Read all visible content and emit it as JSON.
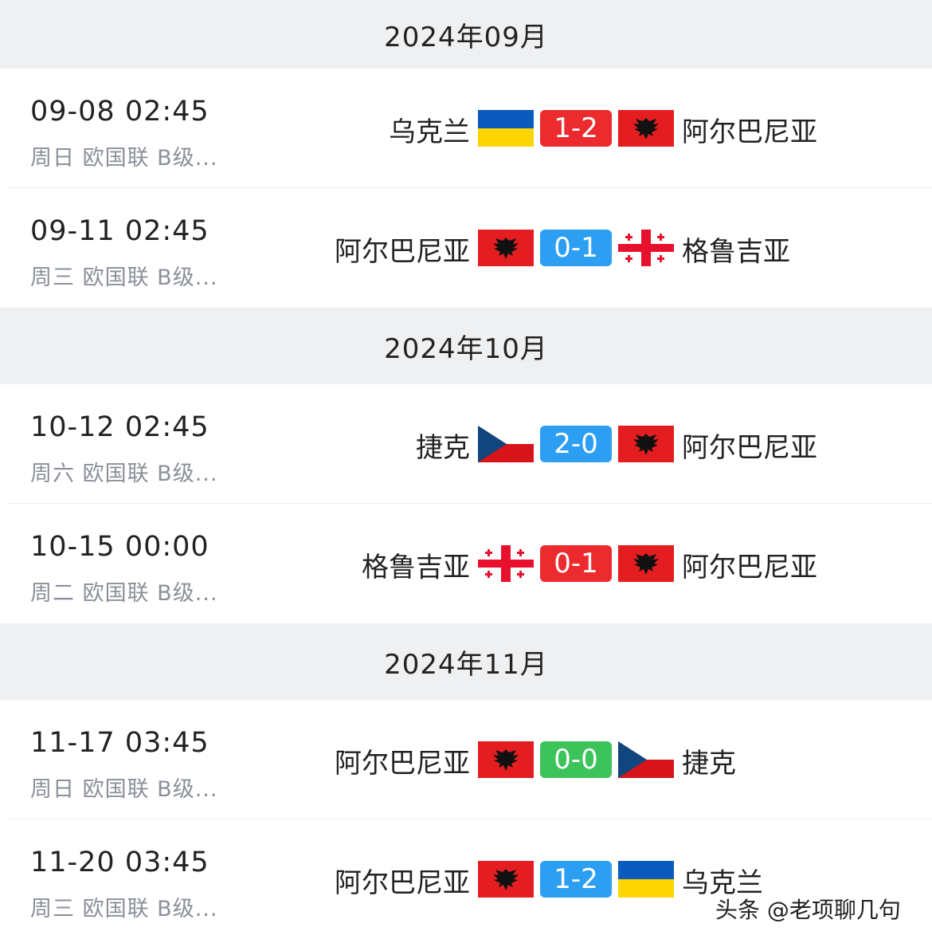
{
  "colors": {
    "loss": "#ec2b2e",
    "draw": "#3cc35a",
    "win_other": "#2d9ff3"
  },
  "sections": [
    {
      "month": "2024年09月",
      "matches": [
        {
          "date": "09-08 02:45",
          "info": "周日 欧国联 B级...",
          "home": "乌克兰",
          "home_flag": "ukraine",
          "score": "1-2",
          "score_color": "#ec2b2e",
          "away": "阿尔巴尼亚",
          "away_flag": "albania"
        },
        {
          "date": "09-11 02:45",
          "info": "周三 欧国联 B级...",
          "home": "阿尔巴尼亚",
          "home_flag": "albania",
          "score": "0-1",
          "score_color": "#2d9ff3",
          "away": "格鲁吉亚",
          "away_flag": "georgia"
        }
      ]
    },
    {
      "month": "2024年10月",
      "matches": [
        {
          "date": "10-12 02:45",
          "info": "周六 欧国联 B级...",
          "home": "捷克",
          "home_flag": "czech",
          "score": "2-0",
          "score_color": "#2d9ff3",
          "away": "阿尔巴尼亚",
          "away_flag": "albania"
        },
        {
          "date": "10-15 00:00",
          "info": "周二 欧国联 B级...",
          "home": "格鲁吉亚",
          "home_flag": "georgia",
          "score": "0-1",
          "score_color": "#ec2b2e",
          "away": "阿尔巴尼亚",
          "away_flag": "albania"
        }
      ]
    },
    {
      "month": "2024年11月",
      "matches": [
        {
          "date": "11-17 03:45",
          "info": "周日 欧国联 B级...",
          "home": "阿尔巴尼亚",
          "home_flag": "albania",
          "score": "0-0",
          "score_color": "#3cc35a",
          "away": "捷克",
          "away_flag": "czech"
        },
        {
          "date": "11-20 03:45",
          "info": "周三 欧国联 B级...",
          "home": "阿尔巴尼亚",
          "home_flag": "albania",
          "score": "1-2",
          "score_color": "#2d9ff3",
          "away": "乌克兰",
          "away_flag": "ukraine"
        }
      ]
    }
  ],
  "watermark": "头条 @老项聊几句"
}
